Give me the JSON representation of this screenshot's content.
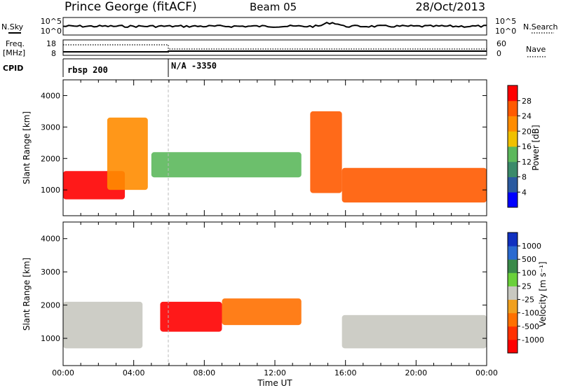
{
  "header": {
    "station": "Prince George (fitACF)",
    "beam": "Beam 05",
    "date": "28/Oct/2013"
  },
  "top_panels": {
    "nsky_label": "N.Sky",
    "nsky_ticks": [
      "10^5",
      "10^0"
    ],
    "nsearch_label": "N.Search",
    "nsearch_ticks": [
      "10^5",
      "10^0"
    ],
    "freq_label_1": "Freq.",
    "freq_label_2": "[MHz]",
    "freq_ticks": [
      "18",
      "8"
    ],
    "nave_label": "Nave",
    "nave_ticks": [
      "60",
      "0"
    ],
    "cpid_label": "CPID",
    "cpid_segments": [
      "rbsp 200",
      "N/A -3350"
    ]
  },
  "colors": {
    "power": [
      "#0000ff",
      "#2a5aa0",
      "#3a8a6a",
      "#5cb85c",
      "#f0c000",
      "#ff8c00",
      "#ff5a00",
      "#ff0000"
    ],
    "velocity": [
      "#1030c0",
      "#2a6ad0",
      "#3a8a4a",
      "#6ad03a",
      "#c8c8c0",
      "#f0a020",
      "#ff7000",
      "#ff3000",
      "#ff0000"
    ]
  },
  "chart_data": [
    {
      "type": "heatmap",
      "name": "Power",
      "xlabel": "",
      "ylabel": "Slant Range [km]",
      "xlim": [
        "00:00",
        "00:00"
      ],
      "ylim": [
        180,
        4500
      ],
      "yticks": [
        "1000",
        "2000",
        "3000",
        "4000"
      ],
      "colorbar_label": "Power [dB]",
      "colorbar_ticks": [
        "4",
        "8",
        "12",
        "16",
        "20",
        "24",
        "28"
      ],
      "features": [
        {
          "desc": "strong scatter band",
          "start_hour": 0.0,
          "end_hour": 3.5,
          "range_km": [
            700,
            1600
          ],
          "power_db": 28
        },
        {
          "desc": "rising band",
          "start_hour": 2.5,
          "end_hour": 4.8,
          "range_km": [
            1000,
            3300
          ],
          "power_db": 20
        },
        {
          "desc": "patchy scatter",
          "start_hour": 5.0,
          "end_hour": 13.5,
          "range_km": [
            1400,
            2200
          ],
          "power_db": 12
        },
        {
          "desc": "descending streak",
          "start_hour": 14.0,
          "end_hour": 15.8,
          "range_km": [
            900,
            3500
          ],
          "power_db": 24
        },
        {
          "desc": "strong band",
          "start_hour": 15.8,
          "end_hour": 24.0,
          "range_km": [
            600,
            1700
          ],
          "power_db": 26
        }
      ]
    },
    {
      "type": "heatmap",
      "name": "Velocity",
      "xlabel": "Time UT",
      "ylabel": "Slant Range [km]",
      "xticks": [
        "00:00",
        "04:00",
        "08:00",
        "12:00",
        "16:00",
        "20:00",
        "00:00"
      ],
      "ylim": [
        180,
        4500
      ],
      "yticks": [
        "1000",
        "2000",
        "3000",
        "4000"
      ],
      "colorbar_label": "Velocity [m s⁻¹]",
      "colorbar_ticks": [
        "1000",
        "500",
        "100",
        "25",
        "-25",
        "-100",
        "-500",
        "-1000"
      ],
      "features": [
        {
          "desc": "ground scatter (grey)",
          "start_hour": 0.0,
          "end_hour": 4.5,
          "range_km": [
            700,
            2100
          ],
          "velocity": 0
        },
        {
          "desc": "strong negative velocity",
          "start_hour": 5.5,
          "end_hour": 9.0,
          "range_km": [
            1200,
            2100
          ],
          "velocity": -1000
        },
        {
          "desc": "moderate negative velocity",
          "start_hour": 9.0,
          "end_hour": 13.5,
          "range_km": [
            1400,
            2200
          ],
          "velocity": -400
        },
        {
          "desc": "ground scatter (grey)",
          "start_hour": 15.8,
          "end_hour": 24.0,
          "range_km": [
            700,
            1700
          ],
          "velocity": 0
        }
      ]
    }
  ]
}
